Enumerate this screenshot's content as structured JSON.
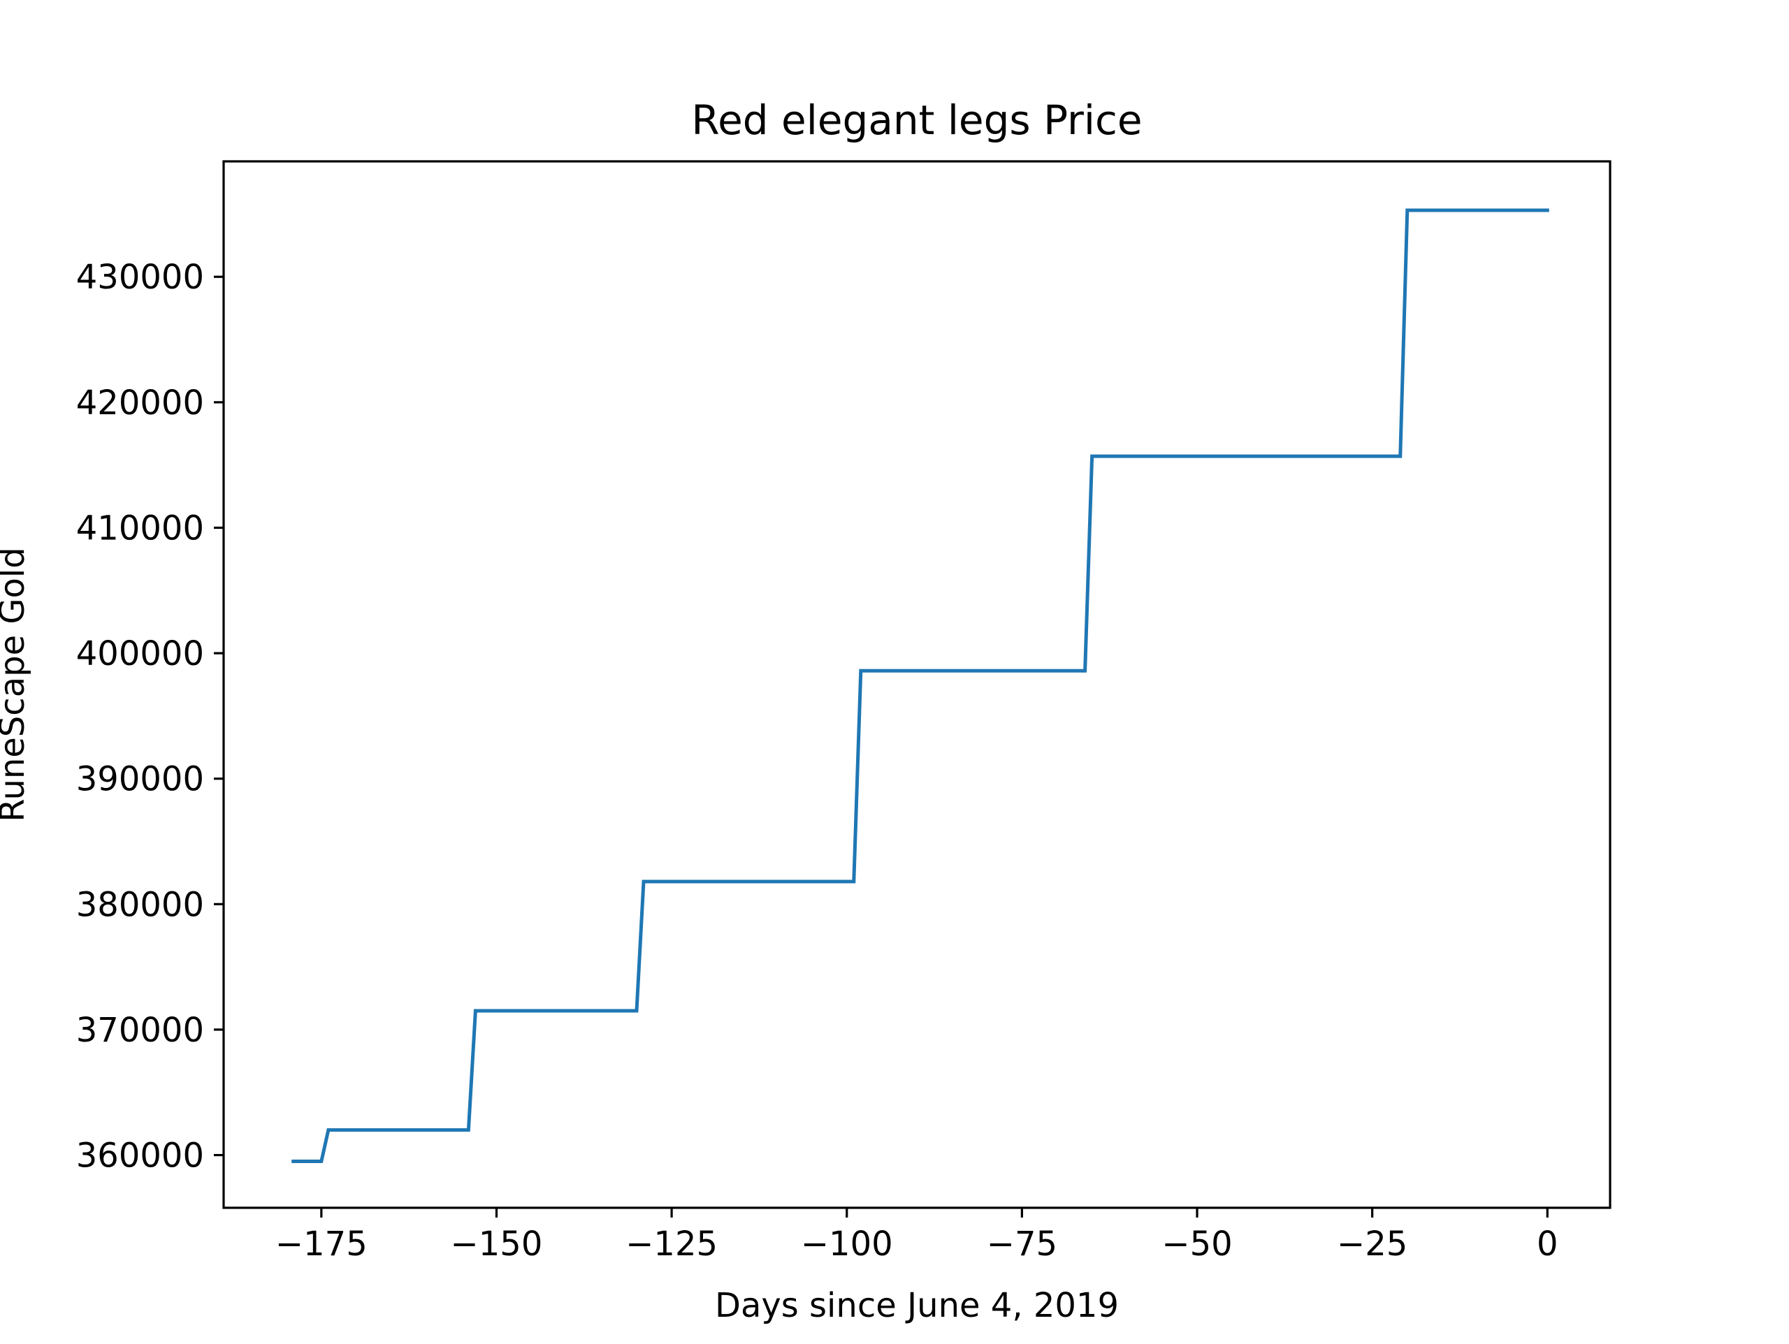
{
  "chart_data": {
    "type": "line",
    "title": "Red elegant legs Price",
    "xlabel": "Days since June 4, 2019",
    "ylabel": "RuneScape Gold",
    "xlim": [
      -188.95,
      8.95
    ],
    "ylim": [
      355800,
      439200
    ],
    "x_ticks": [
      -175,
      -150,
      -125,
      -100,
      -75,
      -50,
      -25,
      0
    ],
    "x_tick_labels": [
      "−175",
      "−150",
      "−125",
      "−100",
      "−75",
      "−50",
      "−25",
      "0"
    ],
    "y_ticks": [
      360000,
      370000,
      380000,
      390000,
      400000,
      410000,
      420000,
      430000
    ],
    "y_tick_labels": [
      "360000",
      "370000",
      "380000",
      "390000",
      "400000",
      "410000",
      "420000",
      "430000"
    ],
    "grid": false,
    "legend": "none",
    "series": [
      {
        "color": "#1f77b4",
        "x": [
          -179,
          -175,
          -174,
          -154,
          -153,
          -130,
          -129,
          -99,
          -98,
          -66,
          -65,
          -21,
          -20,
          0
        ],
        "y": [
          359500,
          359500,
          362000,
          362000,
          371500,
          371500,
          381800,
          381800,
          398600,
          398600,
          415700,
          415700,
          435300,
          435300
        ]
      }
    ]
  }
}
